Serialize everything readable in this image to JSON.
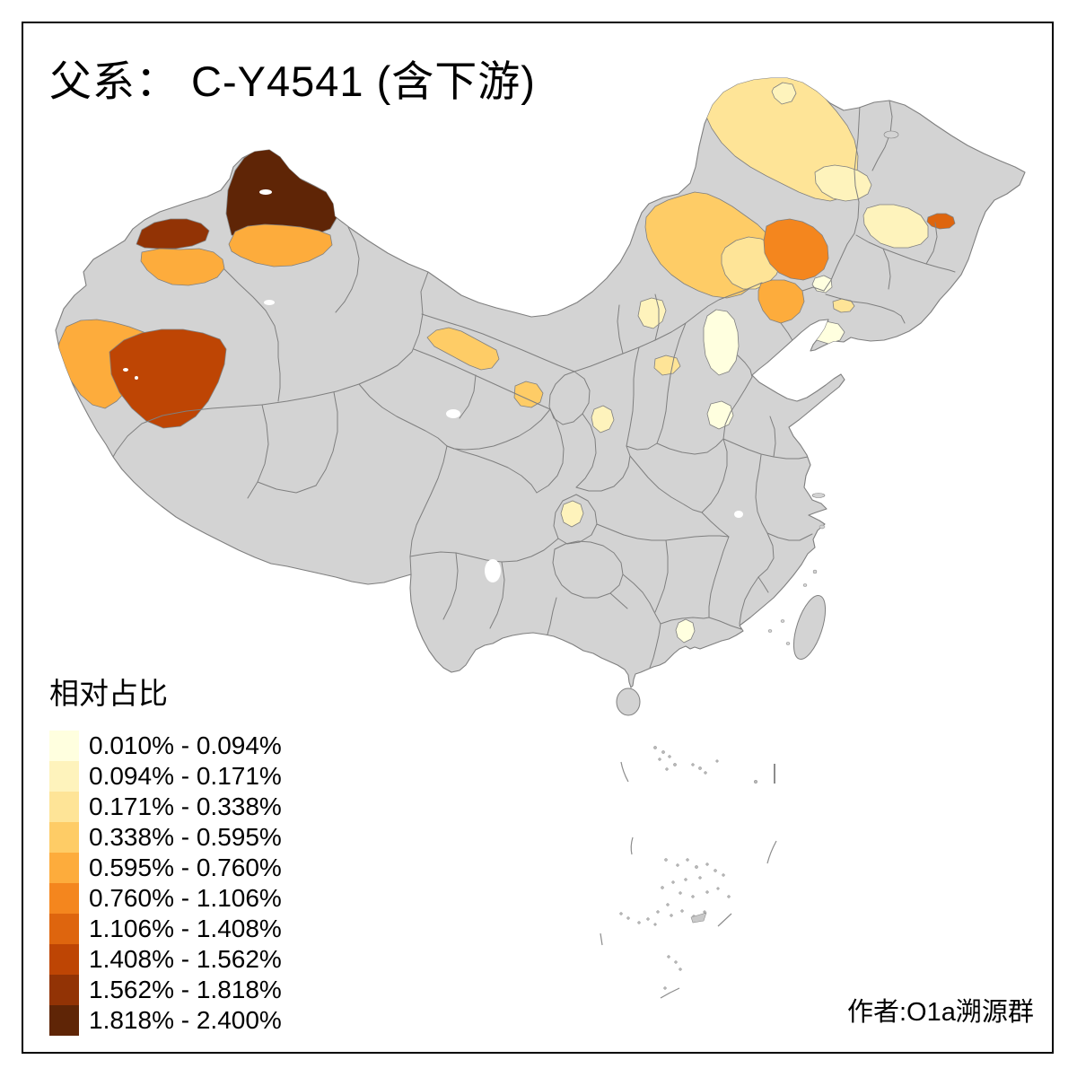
{
  "title": "父系： C-Y4541 (含下游)",
  "legend": {
    "title": "相对占比",
    "classes": [
      {
        "label": "0.010% - 0.094%",
        "color": "#FFFFDF"
      },
      {
        "label": "0.094% - 0.171%",
        "color": "#FEF3BC"
      },
      {
        "label": "0.171% - 0.338%",
        "color": "#FEE497"
      },
      {
        "label": "0.338% - 0.595%",
        "color": "#FECC66"
      },
      {
        "label": "0.595% - 0.760%",
        "color": "#FDAC3C"
      },
      {
        "label": "0.760% - 1.106%",
        "color": "#F4861E"
      },
      {
        "label": "1.106% - 1.408%",
        "color": "#DE650E"
      },
      {
        "label": "1.408% - 1.562%",
        "color": "#BE4504"
      },
      {
        "label": "1.562% - 1.818%",
        "color": "#923305"
      },
      {
        "label": "1.818% - 2.400%",
        "color": "#5F2506"
      }
    ]
  },
  "author": "作者:O1a溯源群",
  "map": {
    "land_color": "#D3D3D3",
    "border_color": "#7F7F7F",
    "sea_color": "#FFFFFF",
    "frame_color": "#000000",
    "regions": [
      {
        "id": "altay",
        "class_index": 10
      },
      {
        "id": "tacheng-north",
        "class_index": 9
      },
      {
        "id": "ili-bortala",
        "class_index": 5
      },
      {
        "id": "changji",
        "class_index": 5
      },
      {
        "id": "kashgar",
        "class_index": 5
      },
      {
        "id": "hotan",
        "class_index": 8
      },
      {
        "id": "jiuquan-zhangye",
        "class_index": 4
      },
      {
        "id": "wuwei",
        "class_index": 4
      },
      {
        "id": "xinzhou",
        "class_index": 2
      },
      {
        "id": "yulin",
        "class_index": 3
      },
      {
        "id": "guyuan",
        "class_index": 2
      },
      {
        "id": "beijing",
        "class_index": 1
      },
      {
        "id": "south-hebei",
        "class_index": 1
      },
      {
        "id": "jinzhou-huludao",
        "class_index": 1
      },
      {
        "id": "chongqing",
        "class_index": 2
      },
      {
        "id": "guangzhou",
        "class_index": 1
      },
      {
        "id": "hulunbuir",
        "class_index": 3
      },
      {
        "id": "hulunbuir-nw",
        "class_index": 2
      },
      {
        "id": "xilingol",
        "class_index": 4
      },
      {
        "id": "chifeng",
        "class_index": 3
      },
      {
        "id": "tongliao",
        "class_index": 6
      },
      {
        "id": "chaoyang",
        "class_index": 5
      },
      {
        "id": "qiqihar",
        "class_index": 2
      },
      {
        "id": "harbin-suihua",
        "class_index": 2
      },
      {
        "id": "jiamusi",
        "class_index": 7
      },
      {
        "id": "tieling",
        "class_index": 3
      },
      {
        "id": "panjin",
        "class_index": 1
      }
    ]
  }
}
